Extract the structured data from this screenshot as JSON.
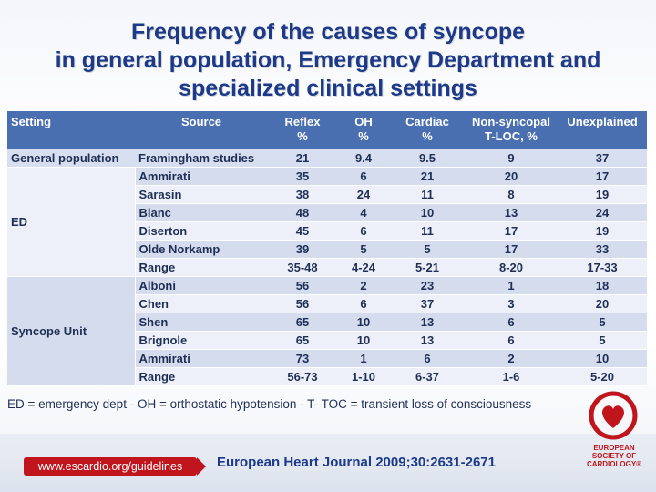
{
  "title": {
    "line1": "Frequency of the causes of syncope",
    "line2": "in general population,  Emergency Department and",
    "line3": "specialized clinical settings"
  },
  "table": {
    "headers": {
      "setting": "Setting",
      "source": "Source",
      "reflex": "Reflex\n%",
      "oh": "OH\n%",
      "cardiac": "Cardiac\n%",
      "nonsyncopal": "Non-syncopal\nT-LOC, %",
      "unexplained": "Unexplained"
    },
    "general_population": {
      "setting": "General population",
      "source": "Framingham studies",
      "values": [
        "21",
        "9.4",
        "9.5",
        "9",
        "37"
      ]
    },
    "ed": {
      "setting": "ED",
      "rows": [
        {
          "source": "Ammirati",
          "values": [
            "35",
            "6",
            "21",
            "20",
            "17"
          ]
        },
        {
          "source": "Sarasin",
          "values": [
            "38",
            "24",
            "11",
            "8",
            "19"
          ]
        },
        {
          "source": "Blanc",
          "values": [
            "48",
            "4",
            "10",
            "13",
            "24"
          ]
        },
        {
          "source": "Diserton",
          "values": [
            "45",
            "6",
            "11",
            "17",
            "19"
          ]
        },
        {
          "source": "Olde Norkamp",
          "values": [
            "39",
            "5",
            "5",
            "17",
            "33"
          ]
        },
        {
          "source": "Range",
          "values": [
            "35-48",
            "4-24",
            "5-21",
            "8-20",
            "17-33"
          ]
        }
      ]
    },
    "syncope_unit": {
      "setting": "Syncope Unit",
      "rows": [
        {
          "source": "Alboni",
          "values": [
            "56",
            "2",
            "23",
            "1",
            "18"
          ]
        },
        {
          "source": "Chen",
          "values": [
            "56",
            "6",
            "37",
            "3",
            "20"
          ]
        },
        {
          "source": "Shen",
          "values": [
            "65",
            "10",
            "13",
            "6",
            "5"
          ]
        },
        {
          "source": "Brignole",
          "values": [
            "65",
            "10",
            "13",
            "6",
            "5"
          ]
        },
        {
          "source": "Ammirati",
          "values": [
            "73",
            "1",
            "6",
            "2",
            "10"
          ]
        },
        {
          "source": "Range",
          "values": [
            "56-73",
            "1-10",
            "6-37",
            "1-6",
            "5-20"
          ]
        }
      ]
    }
  },
  "footnote": "ED = emergency dept - OH = orthostatic hypotension - T- TOC = transient loss of consciousness",
  "footer": {
    "url": "www.escardio.org/guidelines",
    "citation": "European Heart Journal 2009;30:2631-2671",
    "logo_text": "EUROPEAN\nSOCIETY OF\nCARDIOLOGY®"
  },
  "colors": {
    "title": "#1d3a8a",
    "header_bg": "#4a6fb0",
    "row_light": "#edf0f8",
    "row_dark": "#d5dcee",
    "brand_red": "#c0151d"
  }
}
